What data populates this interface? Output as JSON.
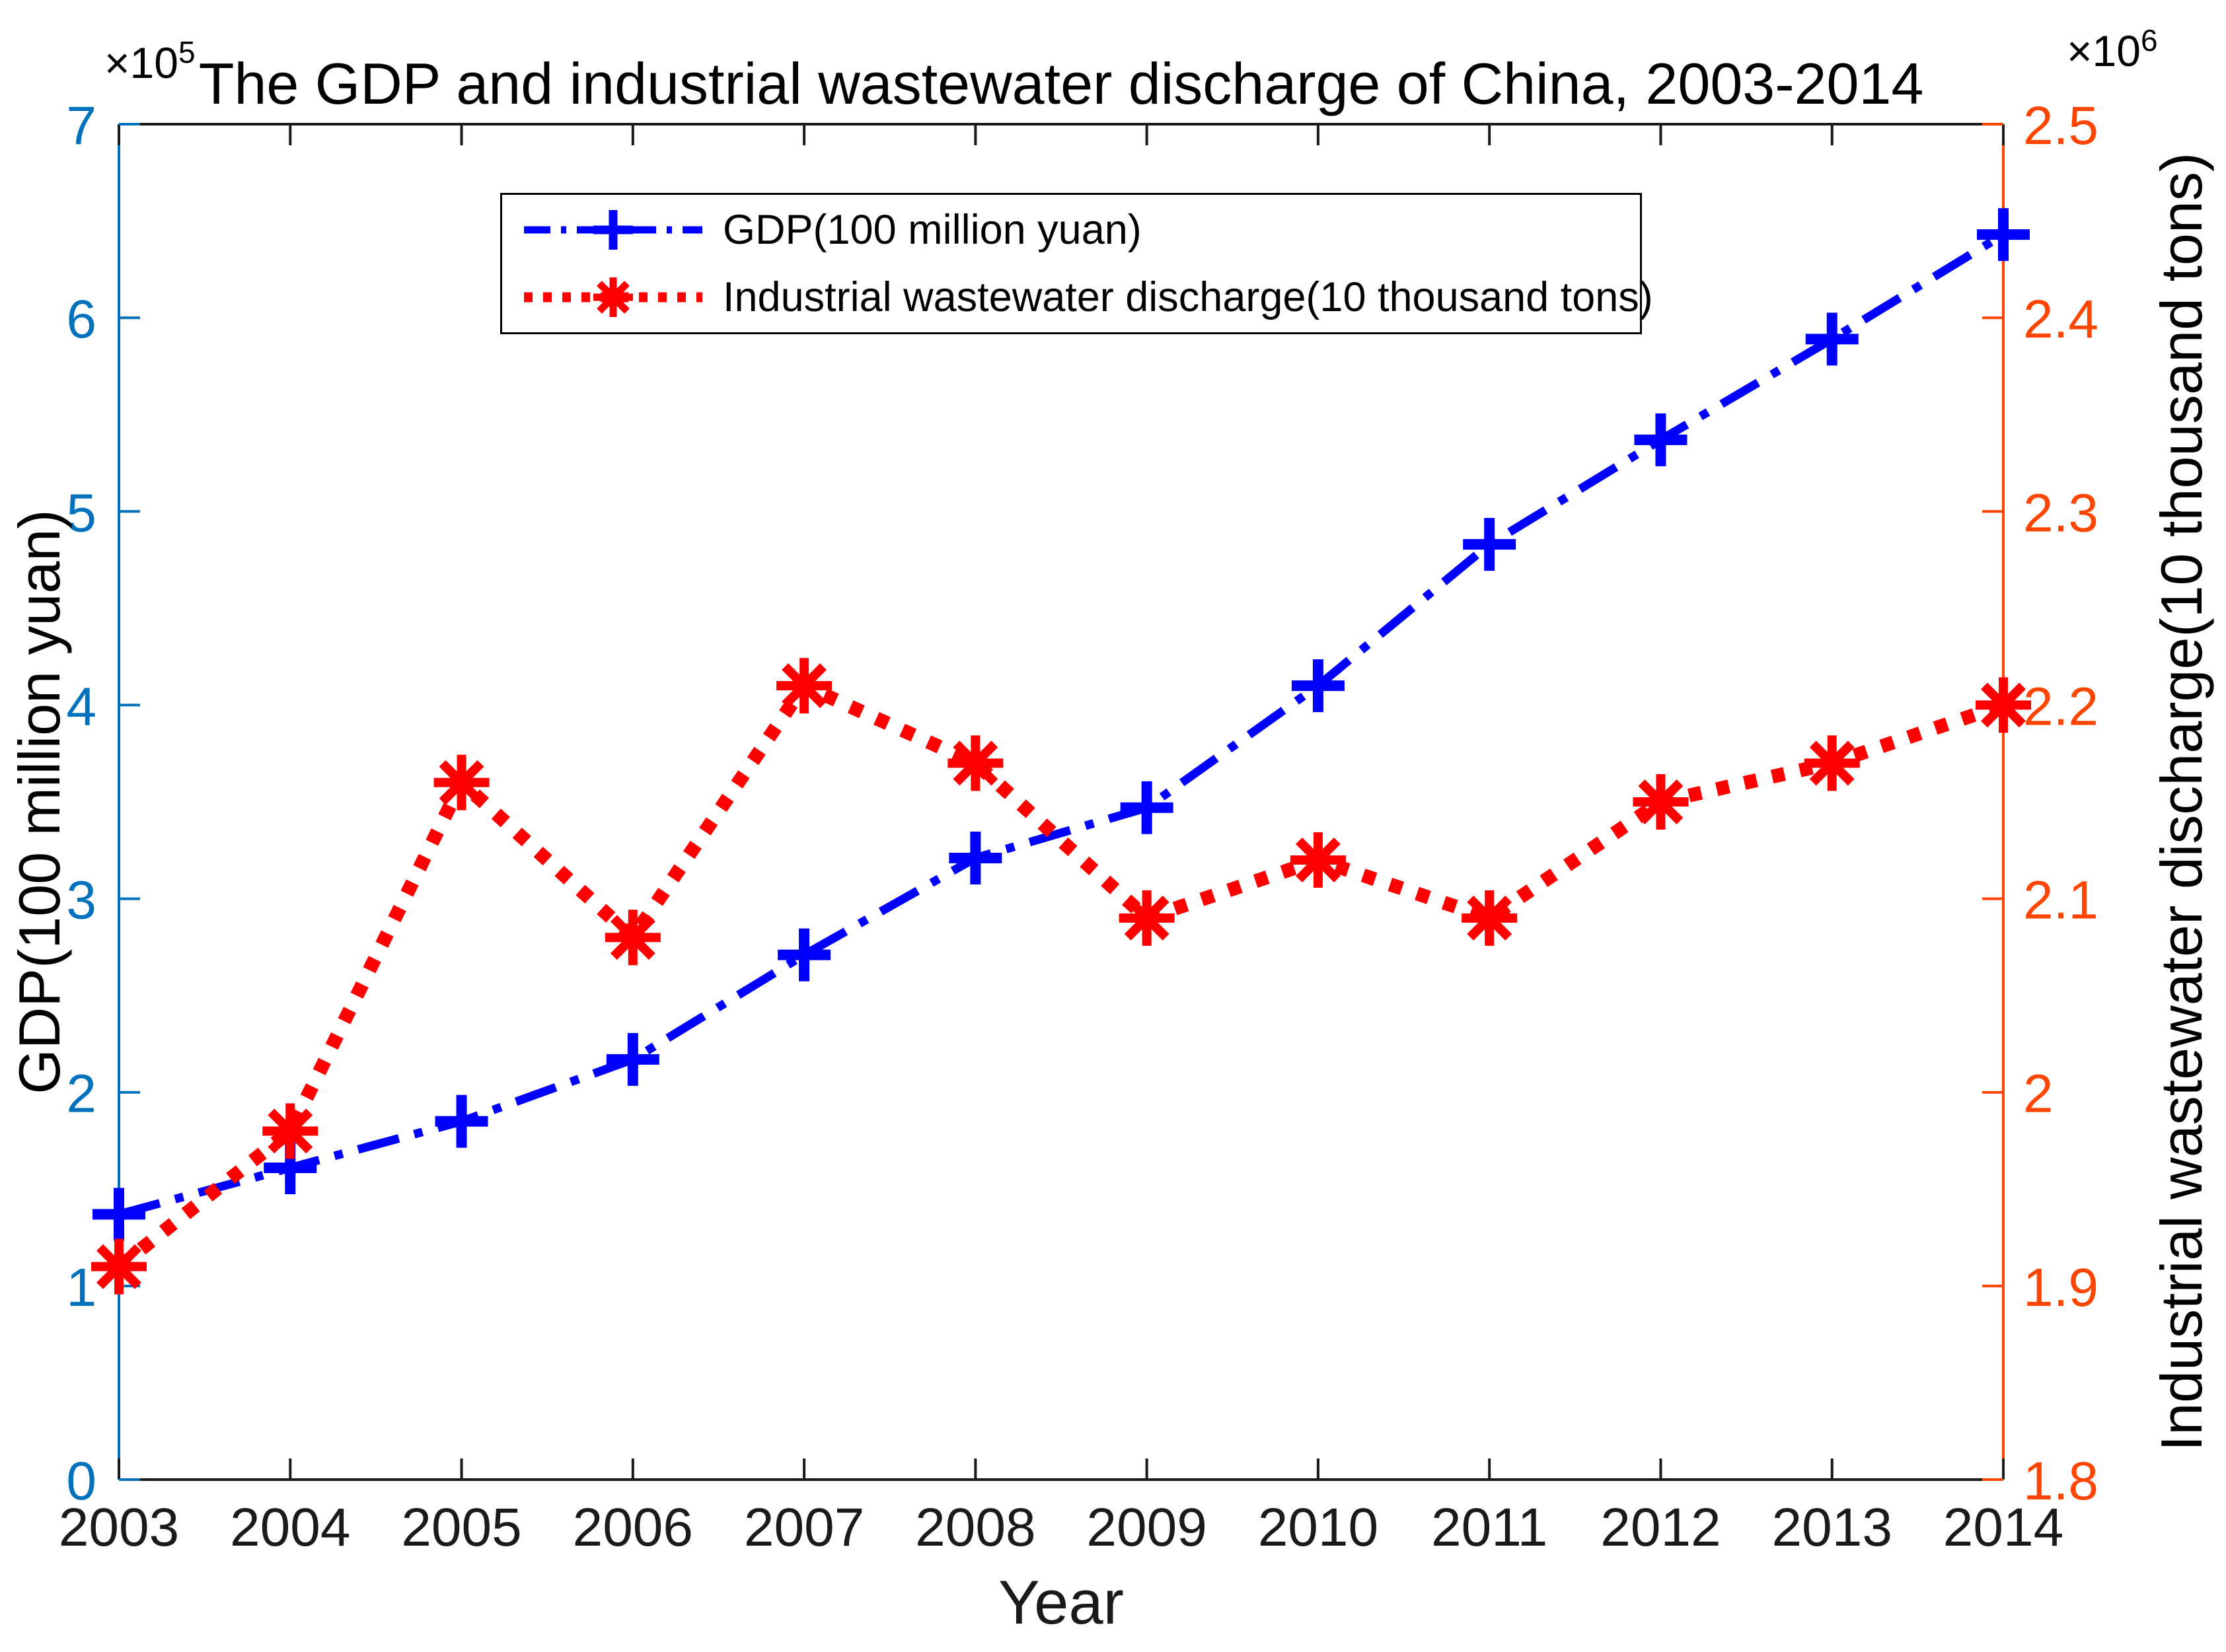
{
  "title": "The GDP and industrial wastewater discharge of China, 2003-2014",
  "legend": {
    "items": [
      {
        "label": "GDP(100 million yuan)"
      },
      {
        "label": "Industrial wastewater discharge(10 thousand tons)"
      }
    ]
  },
  "axes": {
    "x": {
      "label": "Year",
      "ticks": [
        "2003",
        "2004",
        "2005",
        "2006",
        "2007",
        "2008",
        "2009",
        "2010",
        "2011",
        "2012",
        "2013",
        "2014"
      ],
      "color": "#1a1a1a"
    },
    "left": {
      "label": "GDP(100 million yuan)",
      "multiplier_base": "×10",
      "multiplier_exp": "5",
      "ticks": [
        "0",
        "1",
        "2",
        "3",
        "4",
        "5",
        "6",
        "7"
      ],
      "range": [
        0,
        7
      ],
      "color": "#0072BD"
    },
    "right": {
      "label": "Industrial wastewater discharge(10 thousand tons)",
      "multiplier_base": "×10",
      "multiplier_exp": "6",
      "ticks": [
        "1.8",
        "1.9",
        "2",
        "2.1",
        "2.2",
        "2.3",
        "2.4",
        "2.5"
      ],
      "range": [
        1.8,
        2.5
      ],
      "color": "#FF4500"
    }
  },
  "chart_data": {
    "type": "line",
    "title": "The GDP and industrial wastewater discharge of China, 2003-2014",
    "xlabel": "Year",
    "x": [
      2003,
      2004,
      2005,
      2006,
      2007,
      2008,
      2009,
      2010,
      2011,
      2012,
      2013,
      2014
    ],
    "xlim": [
      2003,
      2014
    ],
    "grid": false,
    "legend_position": "top-left-inside",
    "ylabel_left": "GDP(100 million yuan)",
    "ylabel_right": "Industrial wastewater discharge(10 thousand tons)",
    "ylim_left": [
      0,
      7
    ],
    "ylim_right": [
      1.8,
      2.5
    ],
    "left_axis_multiplier": "1e5",
    "right_axis_multiplier": "1e6",
    "series": [
      {
        "name": "GDP(100 million yuan)",
        "axis": "left",
        "unit": "100 million yuan, values ×10^5",
        "color": "#0000FF",
        "line_style": "dash-dot",
        "marker": "plus",
        "values": [
          1.37,
          1.61,
          1.85,
          2.17,
          2.71,
          3.21,
          3.47,
          4.1,
          4.83,
          5.37,
          5.89,
          6.43
        ]
      },
      {
        "name": "Industrial wastewater discharge(10 thousand tons)",
        "axis": "right",
        "unit": "10 thousand tons, values ×10^6",
        "color": "#FF0000",
        "line_style": "dotted",
        "marker": "asterisk",
        "values": [
          1.91,
          1.98,
          2.16,
          2.08,
          2.21,
          2.17,
          2.09,
          2.12,
          2.09,
          2.15,
          2.17,
          2.2
        ]
      }
    ]
  }
}
